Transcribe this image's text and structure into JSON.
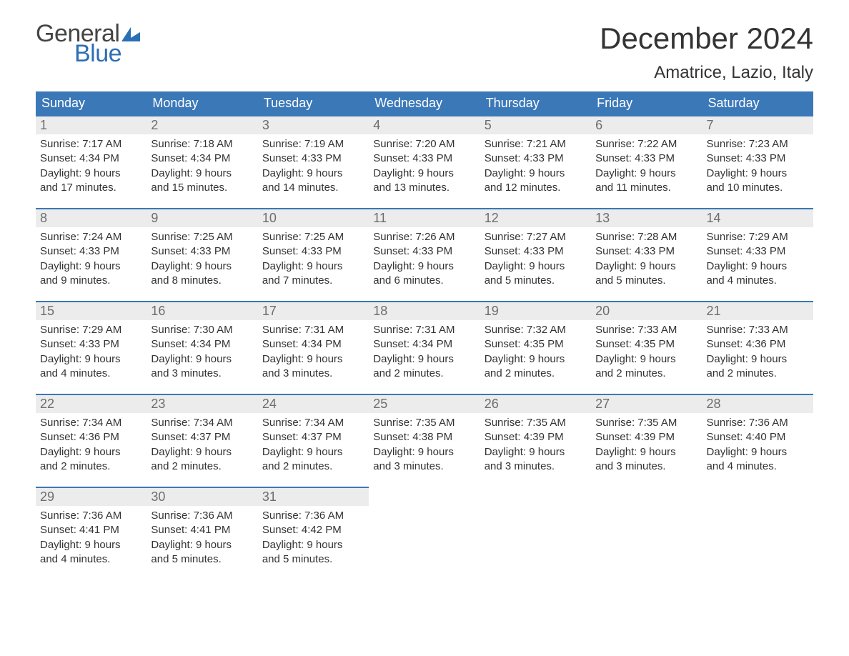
{
  "brand": {
    "general": "General",
    "blue": "Blue",
    "flag_color": "#2b6fb5",
    "text_general_color": "#444444"
  },
  "title": {
    "month": "December 2024",
    "location": "Amatrice, Lazio, Italy"
  },
  "colors": {
    "header_bg": "#3b78b8",
    "header_text": "#ffffff",
    "daynum_bg": "#ececec",
    "daynum_border": "#3b78b8",
    "daynum_text": "#6d6d6d",
    "body_text": "#333333",
    "page_bg": "#ffffff"
  },
  "weekdays": [
    "Sunday",
    "Monday",
    "Tuesday",
    "Wednesday",
    "Thursday",
    "Friday",
    "Saturday"
  ],
  "weeks": [
    [
      {
        "n": "1",
        "sunrise": "Sunrise: 7:17 AM",
        "sunset": "Sunset: 4:34 PM",
        "dl1": "Daylight: 9 hours",
        "dl2": "and 17 minutes."
      },
      {
        "n": "2",
        "sunrise": "Sunrise: 7:18 AM",
        "sunset": "Sunset: 4:34 PM",
        "dl1": "Daylight: 9 hours",
        "dl2": "and 15 minutes."
      },
      {
        "n": "3",
        "sunrise": "Sunrise: 7:19 AM",
        "sunset": "Sunset: 4:33 PM",
        "dl1": "Daylight: 9 hours",
        "dl2": "and 14 minutes."
      },
      {
        "n": "4",
        "sunrise": "Sunrise: 7:20 AM",
        "sunset": "Sunset: 4:33 PM",
        "dl1": "Daylight: 9 hours",
        "dl2": "and 13 minutes."
      },
      {
        "n": "5",
        "sunrise": "Sunrise: 7:21 AM",
        "sunset": "Sunset: 4:33 PM",
        "dl1": "Daylight: 9 hours",
        "dl2": "and 12 minutes."
      },
      {
        "n": "6",
        "sunrise": "Sunrise: 7:22 AM",
        "sunset": "Sunset: 4:33 PM",
        "dl1": "Daylight: 9 hours",
        "dl2": "and 11 minutes."
      },
      {
        "n": "7",
        "sunrise": "Sunrise: 7:23 AM",
        "sunset": "Sunset: 4:33 PM",
        "dl1": "Daylight: 9 hours",
        "dl2": "and 10 minutes."
      }
    ],
    [
      {
        "n": "8",
        "sunrise": "Sunrise: 7:24 AM",
        "sunset": "Sunset: 4:33 PM",
        "dl1": "Daylight: 9 hours",
        "dl2": "and 9 minutes."
      },
      {
        "n": "9",
        "sunrise": "Sunrise: 7:25 AM",
        "sunset": "Sunset: 4:33 PM",
        "dl1": "Daylight: 9 hours",
        "dl2": "and 8 minutes."
      },
      {
        "n": "10",
        "sunrise": "Sunrise: 7:25 AM",
        "sunset": "Sunset: 4:33 PM",
        "dl1": "Daylight: 9 hours",
        "dl2": "and 7 minutes."
      },
      {
        "n": "11",
        "sunrise": "Sunrise: 7:26 AM",
        "sunset": "Sunset: 4:33 PM",
        "dl1": "Daylight: 9 hours",
        "dl2": "and 6 minutes."
      },
      {
        "n": "12",
        "sunrise": "Sunrise: 7:27 AM",
        "sunset": "Sunset: 4:33 PM",
        "dl1": "Daylight: 9 hours",
        "dl2": "and 5 minutes."
      },
      {
        "n": "13",
        "sunrise": "Sunrise: 7:28 AM",
        "sunset": "Sunset: 4:33 PM",
        "dl1": "Daylight: 9 hours",
        "dl2": "and 5 minutes."
      },
      {
        "n": "14",
        "sunrise": "Sunrise: 7:29 AM",
        "sunset": "Sunset: 4:33 PM",
        "dl1": "Daylight: 9 hours",
        "dl2": "and 4 minutes."
      }
    ],
    [
      {
        "n": "15",
        "sunrise": "Sunrise: 7:29 AM",
        "sunset": "Sunset: 4:33 PM",
        "dl1": "Daylight: 9 hours",
        "dl2": "and 4 minutes."
      },
      {
        "n": "16",
        "sunrise": "Sunrise: 7:30 AM",
        "sunset": "Sunset: 4:34 PM",
        "dl1": "Daylight: 9 hours",
        "dl2": "and 3 minutes."
      },
      {
        "n": "17",
        "sunrise": "Sunrise: 7:31 AM",
        "sunset": "Sunset: 4:34 PM",
        "dl1": "Daylight: 9 hours",
        "dl2": "and 3 minutes."
      },
      {
        "n": "18",
        "sunrise": "Sunrise: 7:31 AM",
        "sunset": "Sunset: 4:34 PM",
        "dl1": "Daylight: 9 hours",
        "dl2": "and 2 minutes."
      },
      {
        "n": "19",
        "sunrise": "Sunrise: 7:32 AM",
        "sunset": "Sunset: 4:35 PM",
        "dl1": "Daylight: 9 hours",
        "dl2": "and 2 minutes."
      },
      {
        "n": "20",
        "sunrise": "Sunrise: 7:33 AM",
        "sunset": "Sunset: 4:35 PM",
        "dl1": "Daylight: 9 hours",
        "dl2": "and 2 minutes."
      },
      {
        "n": "21",
        "sunrise": "Sunrise: 7:33 AM",
        "sunset": "Sunset: 4:36 PM",
        "dl1": "Daylight: 9 hours",
        "dl2": "and 2 minutes."
      }
    ],
    [
      {
        "n": "22",
        "sunrise": "Sunrise: 7:34 AM",
        "sunset": "Sunset: 4:36 PM",
        "dl1": "Daylight: 9 hours",
        "dl2": "and 2 minutes."
      },
      {
        "n": "23",
        "sunrise": "Sunrise: 7:34 AM",
        "sunset": "Sunset: 4:37 PM",
        "dl1": "Daylight: 9 hours",
        "dl2": "and 2 minutes."
      },
      {
        "n": "24",
        "sunrise": "Sunrise: 7:34 AM",
        "sunset": "Sunset: 4:37 PM",
        "dl1": "Daylight: 9 hours",
        "dl2": "and 2 minutes."
      },
      {
        "n": "25",
        "sunrise": "Sunrise: 7:35 AM",
        "sunset": "Sunset: 4:38 PM",
        "dl1": "Daylight: 9 hours",
        "dl2": "and 3 minutes."
      },
      {
        "n": "26",
        "sunrise": "Sunrise: 7:35 AM",
        "sunset": "Sunset: 4:39 PM",
        "dl1": "Daylight: 9 hours",
        "dl2": "and 3 minutes."
      },
      {
        "n": "27",
        "sunrise": "Sunrise: 7:35 AM",
        "sunset": "Sunset: 4:39 PM",
        "dl1": "Daylight: 9 hours",
        "dl2": "and 3 minutes."
      },
      {
        "n": "28",
        "sunrise": "Sunrise: 7:36 AM",
        "sunset": "Sunset: 4:40 PM",
        "dl1": "Daylight: 9 hours",
        "dl2": "and 4 minutes."
      }
    ],
    [
      {
        "n": "29",
        "sunrise": "Sunrise: 7:36 AM",
        "sunset": "Sunset: 4:41 PM",
        "dl1": "Daylight: 9 hours",
        "dl2": "and 4 minutes."
      },
      {
        "n": "30",
        "sunrise": "Sunrise: 7:36 AM",
        "sunset": "Sunset: 4:41 PM",
        "dl1": "Daylight: 9 hours",
        "dl2": "and 5 minutes."
      },
      {
        "n": "31",
        "sunrise": "Sunrise: 7:36 AM",
        "sunset": "Sunset: 4:42 PM",
        "dl1": "Daylight: 9 hours",
        "dl2": "and 5 minutes."
      },
      {
        "n": "",
        "sunrise": "",
        "sunset": "",
        "dl1": "",
        "dl2": ""
      },
      {
        "n": "",
        "sunrise": "",
        "sunset": "",
        "dl1": "",
        "dl2": ""
      },
      {
        "n": "",
        "sunrise": "",
        "sunset": "",
        "dl1": "",
        "dl2": ""
      },
      {
        "n": "",
        "sunrise": "",
        "sunset": "",
        "dl1": "",
        "dl2": ""
      }
    ]
  ]
}
